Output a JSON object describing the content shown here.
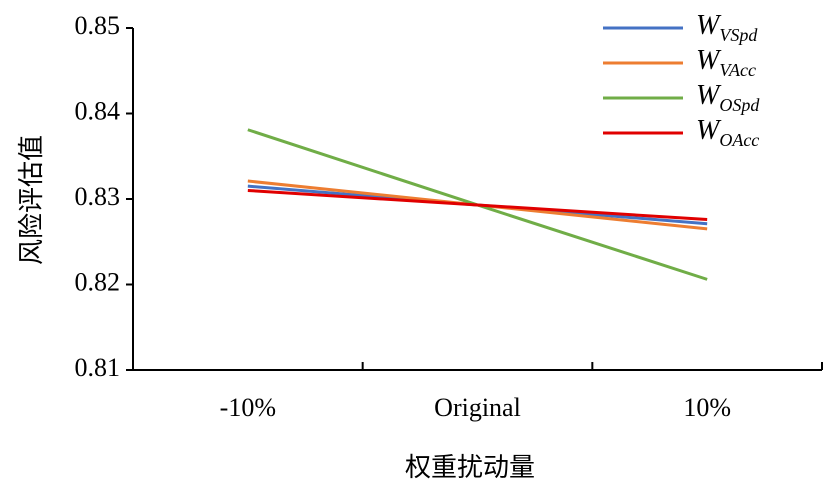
{
  "chart_data": {
    "type": "line",
    "x_label": "权重扰动量",
    "y_label": "风险评估值",
    "categories": [
      "-10%",
      "Original",
      "10%"
    ],
    "series": [
      {
        "name": "WVSpd",
        "color": "#4472c4",
        "values": [
          0.8315,
          0.8293,
          0.8271
        ]
      },
      {
        "name": "WVAcc",
        "color": "#ed7d31",
        "values": [
          0.8321,
          0.8293,
          0.8265
        ]
      },
      {
        "name": "WOSpd",
        "color": "#70ad47",
        "values": [
          0.8381,
          0.8293,
          0.8206
        ]
      },
      {
        "name": "WOAcc",
        "color": "#e00000",
        "values": [
          0.831,
          0.8293,
          0.8276
        ]
      }
    ],
    "ylim": [
      0.81,
      0.85
    ],
    "yticks": [
      0.81,
      0.82,
      0.83,
      0.84,
      0.85
    ],
    "grid": false,
    "legend": "upper right"
  }
}
